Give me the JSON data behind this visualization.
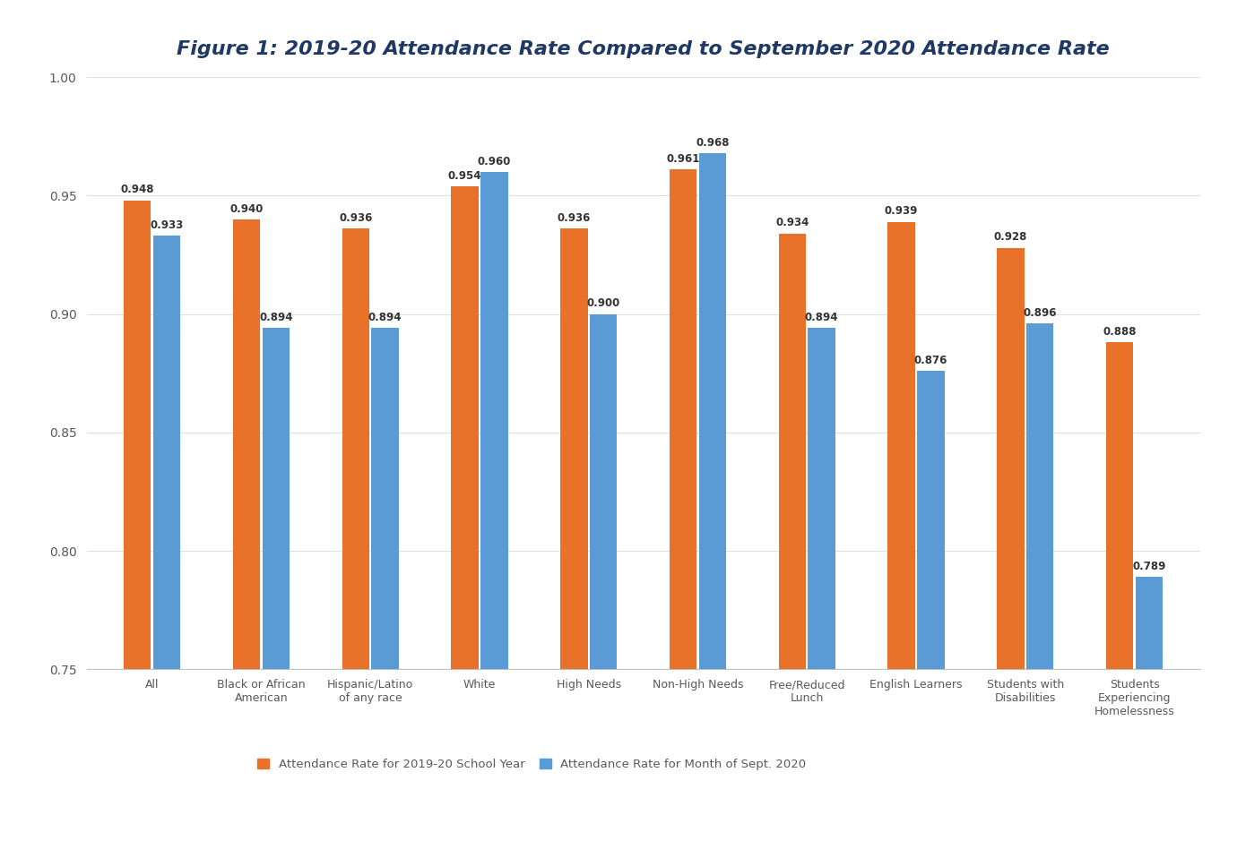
{
  "title": "Figure 1: 2019-20 Attendance Rate Compared to September 2020 Attendance Rate",
  "categories": [
    "All",
    "Black or African\nAmerican",
    "Hispanic/Latino\nof any race",
    "White",
    "High Needs",
    "Non-High Needs",
    "Free/Reduced\nLunch",
    "English Learners",
    "Students with\nDisabilities",
    "Students\nExperiencing\nHomelessness"
  ],
  "values_2019": [
    0.948,
    0.94,
    0.936,
    0.954,
    0.936,
    0.961,
    0.934,
    0.939,
    0.928,
    0.888
  ],
  "values_2020": [
    0.933,
    0.894,
    0.894,
    0.96,
    0.9,
    0.968,
    0.894,
    0.876,
    0.896,
    0.789
  ],
  "color_2019": "#E8722A",
  "color_2020": "#5B9BD5",
  "ylim_min": 0.75,
  "ylim_max": 1.0,
  "yticks": [
    0.75,
    0.8,
    0.85,
    0.9,
    0.95,
    1.0
  ],
  "legend_label_2019": "Attendance Rate for 2019-20 School Year",
  "legend_label_2020": "Attendance Rate for Month of Sept. 2020",
  "title_color": "#1F3864",
  "axis_color": "#595959",
  "tick_color": "#595959",
  "background_color": "#FFFFFF",
  "title_fontsize": 16,
  "xlabel_fontsize": 9,
  "tick_fontsize": 10,
  "bar_label_fontsize": 8.5,
  "legend_fontsize": 9.5,
  "bar_width": 0.25,
  "bar_gap": 0.02
}
